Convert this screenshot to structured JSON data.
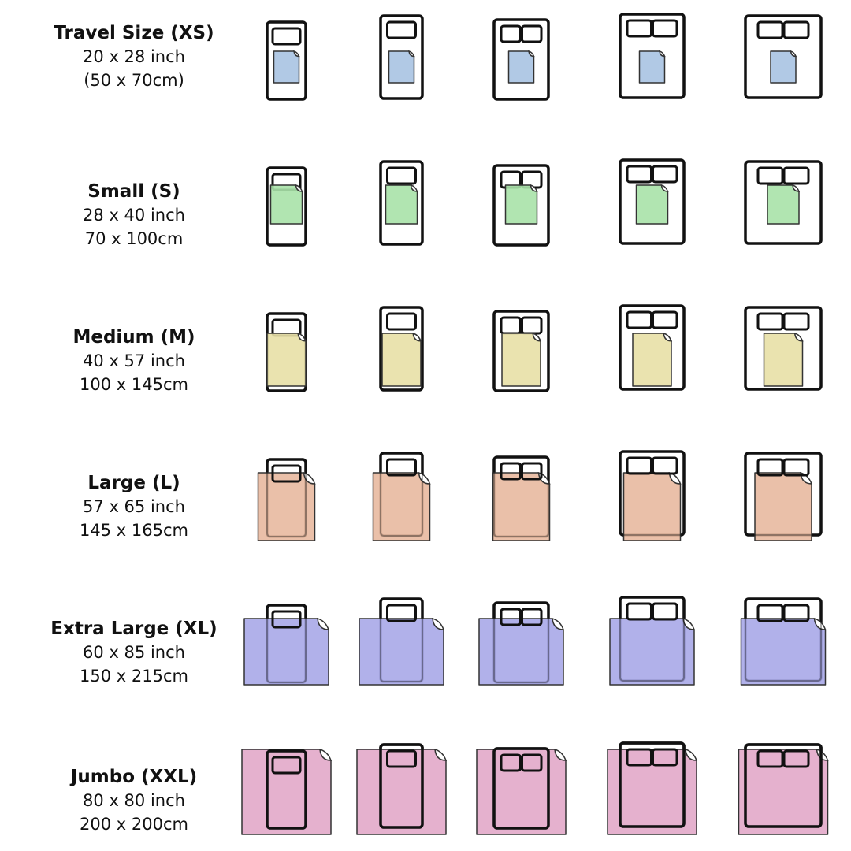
{
  "sizes": [
    {
      "title": "Travel Size (XS)",
      "inch": "20 x 28 inch",
      "cm": "(50 x 70cm)",
      "color": "#a9c3e2"
    },
    {
      "title": "Small (S)",
      "inch": "28 x 40 inch",
      "cm": "70 x 100cm",
      "color": "#a9e2a9"
    },
    {
      "title": "Medium (M)",
      "inch": "40 x 57 inch",
      "cm": "100 x 145cm",
      "color": "#e8e0a6"
    },
    {
      "title": "Large (L)",
      "inch": "57 x 65 inch",
      "cm": "145 x 165cm",
      "color": "#e8b9a0"
    },
    {
      "title": "Extra Large (XL)",
      "inch": "60 x 85 inch",
      "cm": "150 x 215cm",
      "color": "#a9a9e8"
    },
    {
      "title": "Jumbo (XXL)",
      "inch": "80 x 80 inch",
      "cm": "200 x 200cm",
      "color": "#e2a9c9"
    }
  ],
  "bed_types": [
    {
      "icon": "single-bed-icon",
      "pillows": 1
    },
    {
      "icon": "single-bed-icon",
      "pillows": 1
    },
    {
      "icon": "double-bed-icon",
      "pillows": 2
    },
    {
      "icon": "queen-bed-icon",
      "pillows": 2
    },
    {
      "icon": "king-bed-icon",
      "pillows": 2
    }
  ]
}
